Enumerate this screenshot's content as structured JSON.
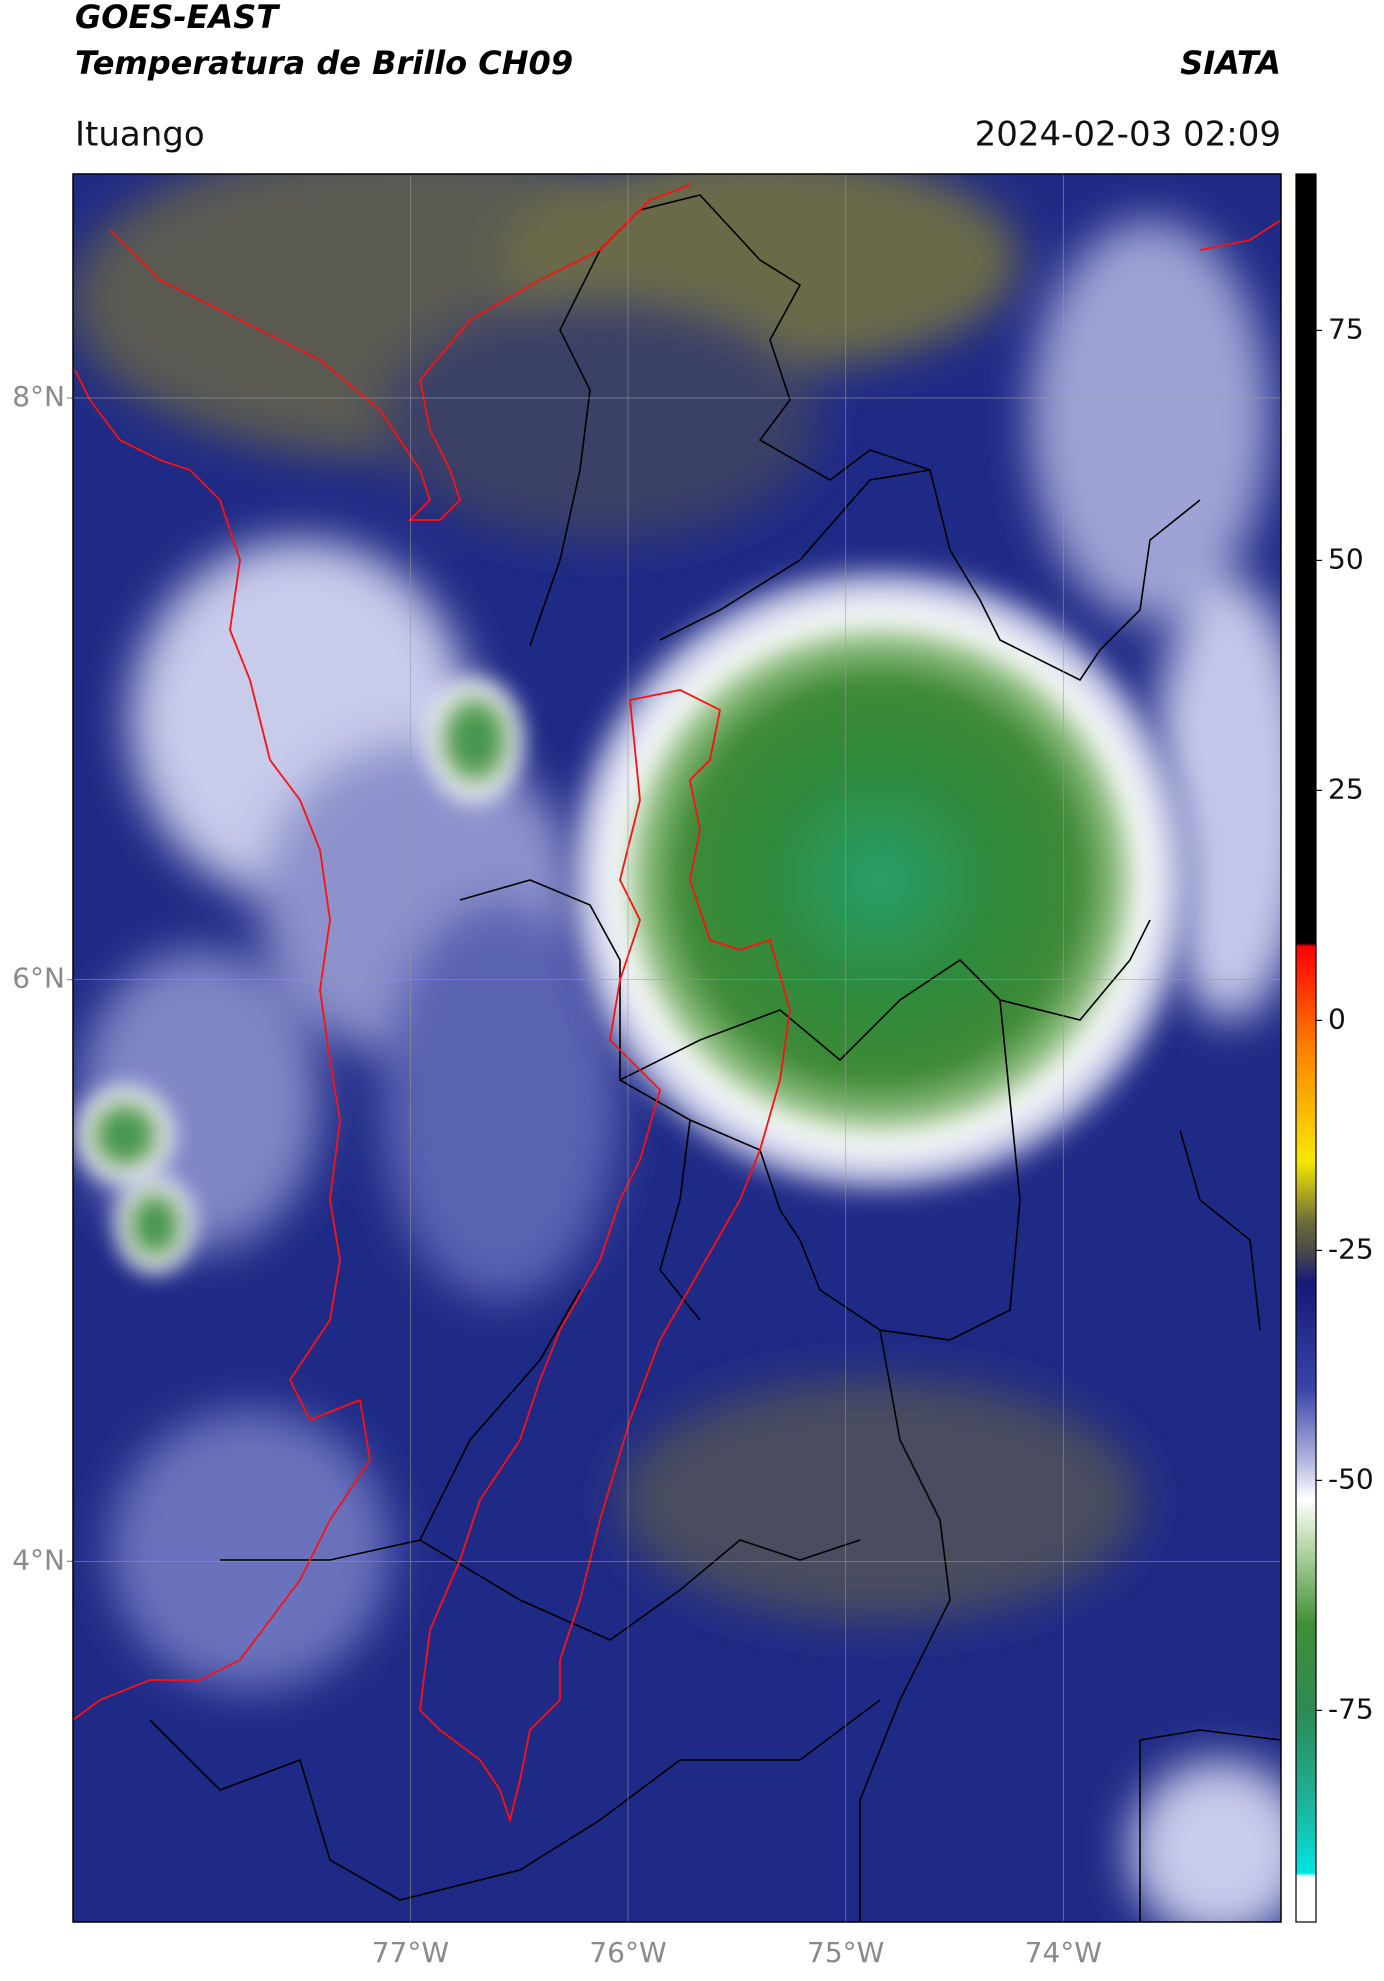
{
  "header": {
    "satellite": "GOES-EAST",
    "product": "Temperatura de Brillo CH09",
    "source": "SIATA",
    "location": "Ituango",
    "datetime": "2024-02-03 02:09"
  },
  "map": {
    "xlim": [
      -78.55,
      -73.0
    ],
    "ylim": [
      2.76,
      8.77
    ],
    "xticks": [
      {
        "value": -77,
        "label": "77°W"
      },
      {
        "value": -76,
        "label": "76°W"
      },
      {
        "value": -75,
        "label": "75°W"
      },
      {
        "value": -74,
        "label": "74°W"
      }
    ],
    "yticks": [
      {
        "value": 8,
        "label": "8°N"
      },
      {
        "value": 6,
        "label": "6°N"
      },
      {
        "value": 4,
        "label": "4°N"
      }
    ],
    "grid": true
  },
  "colorbar": {
    "lim": [
      -98,
      92
    ],
    "ticks": [
      75,
      50,
      25,
      0,
      -25,
      -50,
      -75
    ]
  }
}
